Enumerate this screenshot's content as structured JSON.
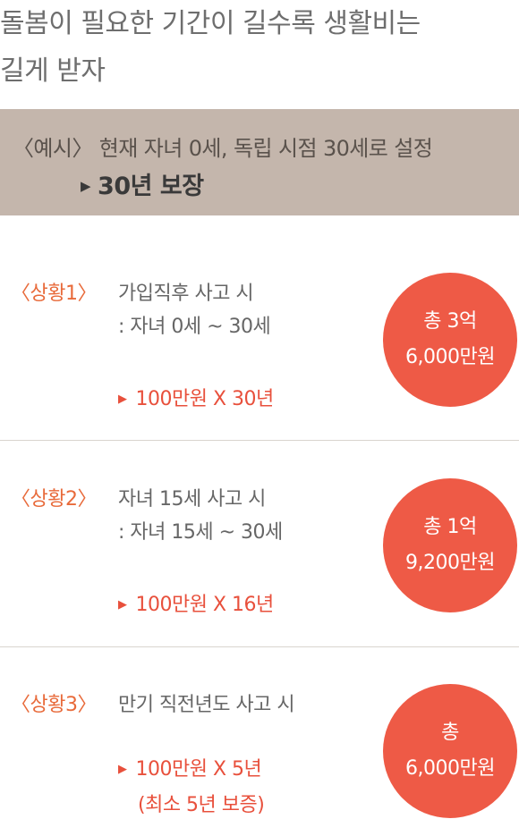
{
  "title": {
    "line1": "돌봄이 필요한 기간이 길수록 생활비는",
    "line2": "길게 받자"
  },
  "example": {
    "line1": "〈예시〉 현재 자녀 0세, 독립 시점 30세로 설정",
    "arrow_icon": "▶",
    "line2": "30년 보장"
  },
  "cases": [
    {
      "label": "〈상황1〉",
      "line1": "가입직후 사고 시",
      "line2": ": 자녀 0세 ~ 30세",
      "formula": "100만원 X 30년",
      "note": "",
      "total_line1": "총 3억",
      "total_line2": "6,000만원"
    },
    {
      "label": "〈상황2〉",
      "line1": "자녀 15세 사고 시",
      "line2": ": 자녀 15세 ~ 30세",
      "formula": "100만원 X 16년",
      "note": "",
      "total_line1": "총 1억",
      "total_line2": "9,200만원"
    },
    {
      "label": "〈상황3〉",
      "line1": "만기 직전년도 사고 시",
      "line2": "",
      "formula": "100만원 X 5년",
      "note": "(최소 5년 보증)",
      "total_line1": "총",
      "total_line2": "6,000만원"
    }
  ],
  "colors": {
    "banner_bg": "#c4b6ac",
    "accent_orange": "#e86a3a",
    "accent_red": "#ee5a46"
  }
}
